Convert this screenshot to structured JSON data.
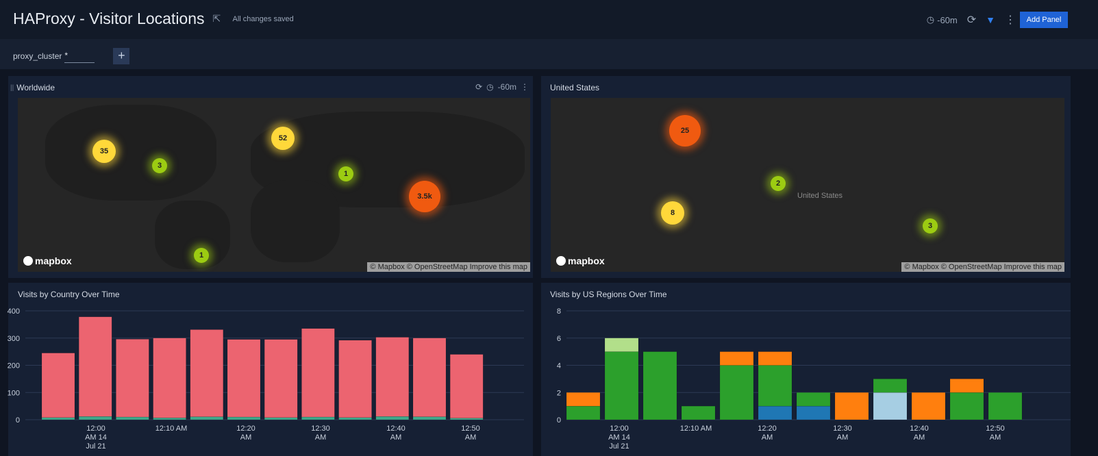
{
  "header": {
    "title": "HAProxy - Visitor Locations",
    "status": "All changes saved",
    "time_range": "-60m",
    "add_panel_label": "Add Panel",
    "icons": [
      "share-icon",
      "clock-icon",
      "refresh-icon",
      "filter-icon",
      "more-vert-icon"
    ],
    "accent": "#1f63d6"
  },
  "filters": {
    "label": "proxy_cluster",
    "value": "*",
    "add_label": "+"
  },
  "panels": {
    "worldwide": {
      "title": "Worldwide",
      "time_range": "-60m",
      "clusters": [
        {
          "label": "35",
          "level": "medium"
        },
        {
          "label": "3",
          "level": "low"
        },
        {
          "label": "52",
          "level": "medium"
        },
        {
          "label": "1",
          "level": "low"
        },
        {
          "label": "3.5k",
          "level": "high"
        },
        {
          "label": "1",
          "level": "low"
        }
      ],
      "logo": "mapbox",
      "attribution": "© Mapbox © OpenStreetMap Improve this map"
    },
    "us": {
      "title": "United States",
      "country_label": "United States",
      "clusters": [
        {
          "label": "25",
          "level": "high"
        },
        {
          "label": "2",
          "level": "low"
        },
        {
          "label": "8",
          "level": "medium"
        },
        {
          "label": "3",
          "level": "low"
        }
      ],
      "logo": "mapbox",
      "attribution": "© Mapbox © OpenStreetMap Improve this map"
    }
  },
  "chart_data": [
    {
      "type": "bar",
      "stacked": true,
      "title": "Visits by Country Over Time",
      "ylim": [
        0,
        400
      ],
      "yticks": [
        "0",
        "100",
        "200",
        "300",
        "400"
      ],
      "xtick_labels": [
        [
          "12:00",
          "AM 14",
          "Jul 21"
        ],
        [
          "12:10 AM"
        ],
        [
          "12:20",
          "AM"
        ],
        [
          "12:30",
          "AM"
        ],
        [
          "12:40",
          "AM"
        ],
        [
          "12:50",
          "AM"
        ]
      ],
      "categories": [
        "11:55",
        "12:00",
        "12:05",
        "12:10",
        "12:15",
        "12:20",
        "12:25",
        "12:30",
        "12:35",
        "12:40",
        "12:45",
        "12:50"
      ],
      "series": [
        {
          "color": "#3fa98b",
          "values": [
            8,
            12,
            10,
            7,
            11,
            10,
            8,
            10,
            8,
            12,
            11,
            6
          ]
        },
        {
          "color": "#ec6470",
          "values": [
            237,
            366,
            286,
            293,
            320,
            285,
            287,
            325,
            284,
            291,
            289,
            234
          ]
        }
      ],
      "grid": true
    },
    {
      "type": "bar",
      "stacked": true,
      "title": "Visits by US Regions Over Time",
      "ylim": [
        0,
        8
      ],
      "yticks": [
        "0",
        "2",
        "4",
        "6",
        "8"
      ],
      "xtick_labels": [
        [
          "12:00",
          "AM 14",
          "Jul 21"
        ],
        [
          "12:10 AM"
        ],
        [
          "12:20",
          "AM"
        ],
        [
          "12:30",
          "AM"
        ],
        [
          "12:40",
          "AM"
        ],
        [
          "12:50",
          "AM"
        ]
      ],
      "categories": [
        "11:55",
        "12:00",
        "12:05",
        "12:10",
        "12:15",
        "12:20",
        "12:25",
        "12:30",
        "12:35",
        "12:40",
        "12:45",
        "12:50"
      ],
      "series": [
        {
          "color": "#1f77b4",
          "values": [
            0,
            0,
            0,
            0,
            0,
            1,
            1,
            0,
            0,
            0,
            0,
            0
          ]
        },
        {
          "color": "#a6cee3",
          "values": [
            0,
            0,
            0,
            0,
            0,
            0,
            0,
            0,
            2,
            0,
            0,
            0
          ]
        },
        {
          "color": "#2ca02c",
          "values": [
            1,
            5,
            5,
            1,
            4,
            3,
            1,
            0,
            1,
            0,
            2,
            2
          ]
        },
        {
          "color": "#ff7f0e",
          "values": [
            1,
            0,
            0,
            0,
            1,
            1,
            0,
            2,
            0,
            2,
            1,
            0
          ]
        },
        {
          "color": "#b2df8a",
          "values": [
            0,
            1,
            0,
            0,
            0,
            0,
            0,
            0,
            0,
            0,
            0,
            0
          ]
        }
      ],
      "grid": true
    }
  ]
}
